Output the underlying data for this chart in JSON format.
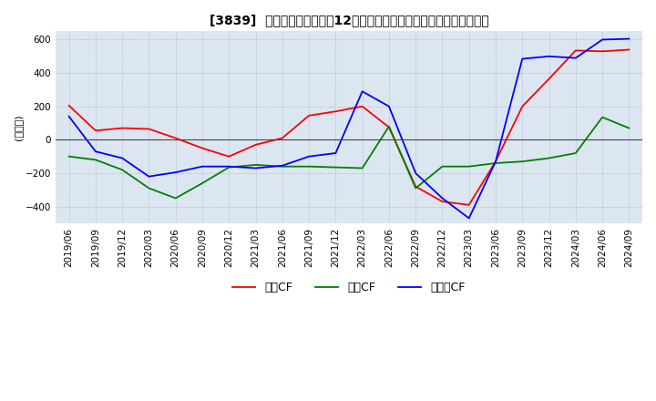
{
  "title": "[3839]  キャッシュフローの12か月移動合計の対前年同期増減額の推移",
  "ylabel": "(百万円)",
  "ylim": [
    -500,
    650
  ],
  "yticks": [
    -400,
    -200,
    0,
    200,
    400,
    600
  ],
  "legend_labels": [
    "営業CF",
    "投資CF",
    "フリーCF"
  ],
  "legend_colors": [
    "#ff0000",
    "#008000",
    "#0000ff"
  ],
  "dates": [
    "2019/06",
    "2019/09",
    "2019/12",
    "2020/03",
    "2020/06",
    "2020/09",
    "2020/12",
    "2021/03",
    "2021/06",
    "2021/09",
    "2021/12",
    "2022/03",
    "2022/06",
    "2022/09",
    "2022/12",
    "2023/03",
    "2023/06",
    "2023/09",
    "2023/12",
    "2024/03",
    "2024/06",
    "2024/09"
  ],
  "eigyo_cf": [
    205,
    55,
    70,
    65,
    10,
    -50,
    -100,
    -30,
    10,
    145,
    170,
    200,
    75,
    -280,
    -370,
    -390,
    -130,
    200,
    365,
    535,
    530,
    540
  ],
  "toshi_cf": [
    -100,
    -120,
    -180,
    -290,
    -350,
    -260,
    -165,
    -150,
    -160,
    -160,
    -165,
    -170,
    80,
    -290,
    -160,
    -160,
    -140,
    -130,
    -110,
    -80,
    135,
    70
  ],
  "free_cf": [
    140,
    -70,
    -110,
    -220,
    -195,
    -160,
    -160,
    -170,
    -155,
    -100,
    -80,
    290,
    200,
    -200,
    -350,
    -470,
    -130,
    485,
    500,
    490,
    600,
    605
  ],
  "bg_color": "#ffffff",
  "plot_bg_color": "#dce6f1",
  "grid_color": "#aaaacc",
  "title_fontsize": 10,
  "tick_label_size": 7.5
}
